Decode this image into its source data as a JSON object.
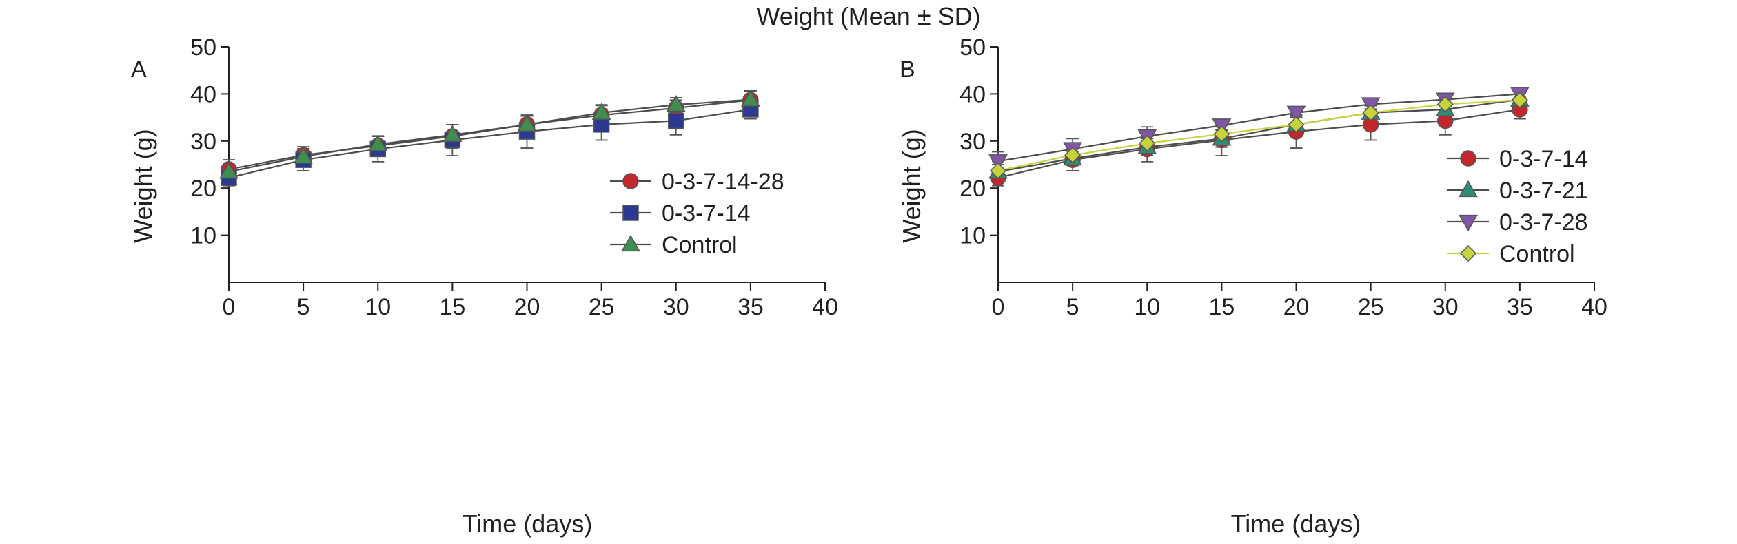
{
  "figure_title": "Weight (Mean ± SD)",
  "chart_data": [
    {
      "type": "line",
      "panel_label": "A",
      "title": "",
      "xlabel": "Time (days)",
      "ylabel": "Weight (g)",
      "xlim": [
        0,
        40
      ],
      "ylim": [
        0,
        50
      ],
      "x_ticks": [
        0,
        5,
        10,
        15,
        20,
        25,
        30,
        35,
        40
      ],
      "y_ticks": [
        10,
        20,
        30,
        40,
        50
      ],
      "grid": false,
      "legend_position": "right",
      "x": [
        0,
        5,
        10,
        15,
        20,
        25,
        30,
        35
      ],
      "series": [
        {
          "name": "0-3-7-14-28",
          "marker": "circle",
          "color": "#c1272d",
          "values": [
            24.0,
            27.0,
            29.0,
            31.0,
            33.5,
            35.5,
            37.0,
            38.7
          ],
          "sd": [
            2.0,
            1.8,
            2.0,
            2.5,
            2.0,
            2.0,
            1.7,
            2.0
          ]
        },
        {
          "name": "0-3-7-14",
          "marker": "square",
          "color": "#2b3990",
          "values": [
            22.2,
            26.0,
            28.3,
            30.2,
            32.0,
            33.5,
            34.3,
            36.7
          ],
          "sd": [
            1.7,
            2.3,
            2.7,
            3.3,
            3.5,
            3.3,
            3.0,
            2.0
          ]
        },
        {
          "name": "Control",
          "marker": "triangle-up",
          "color": "#3f8e4f",
          "values": [
            23.5,
            26.7,
            29.3,
            31.3,
            33.5,
            36.0,
            37.7,
            38.8
          ],
          "sd": [
            2.5,
            1.7,
            1.8,
            2.2,
            1.8,
            1.7,
            1.5,
            1.7
          ]
        }
      ]
    },
    {
      "type": "line",
      "panel_label": "B",
      "title": "",
      "xlabel": "Time (days)",
      "ylabel": "Weight (g)",
      "xlim": [
        0,
        40
      ],
      "ylim": [
        0,
        50
      ],
      "x_ticks": [
        0,
        5,
        10,
        15,
        20,
        25,
        30,
        35,
        40
      ],
      "y_ticks": [
        10,
        20,
        30,
        40,
        50
      ],
      "grid": false,
      "legend_position": "right",
      "x": [
        0,
        5,
        10,
        15,
        20,
        25,
        30,
        35
      ],
      "series": [
        {
          "name": "0-3-7-14",
          "marker": "circle",
          "color": "#c1272d",
          "values": [
            22.2,
            26.0,
            28.3,
            30.2,
            32.0,
            33.5,
            34.3,
            36.7
          ],
          "sd": [
            1.7,
            2.3,
            2.7,
            3.3,
            3.5,
            3.3,
            3.0,
            2.0
          ]
        },
        {
          "name": "0-3-7-21",
          "marker": "triangle-up",
          "color": "#2e8b74",
          "values": [
            23.5,
            26.3,
            28.7,
            30.5,
            33.5,
            36.0,
            36.7,
            38.8
          ],
          "sd": [
            1.5,
            1.5,
            1.8,
            1.8,
            1.8,
            1.5,
            1.5,
            1.5
          ]
        },
        {
          "name": "0-3-7-28",
          "marker": "triangle-down",
          "color": "#7e57a8",
          "values": [
            25.7,
            28.3,
            31.0,
            33.3,
            36.0,
            37.8,
            38.8,
            40.0
          ],
          "sd": [
            2.0,
            2.2,
            2.0,
            1.0,
            1.0,
            1.0,
            0.7,
            0.7
          ]
        },
        {
          "name": "Control",
          "marker": "diamond",
          "color": "#c6d33a",
          "values": [
            23.7,
            27.0,
            29.5,
            31.5,
            33.5,
            36.0,
            37.8,
            38.7
          ],
          "sd": [
            2.0,
            1.7,
            1.5,
            1.8,
            1.5,
            1.5,
            1.2,
            1.5
          ]
        }
      ]
    }
  ]
}
